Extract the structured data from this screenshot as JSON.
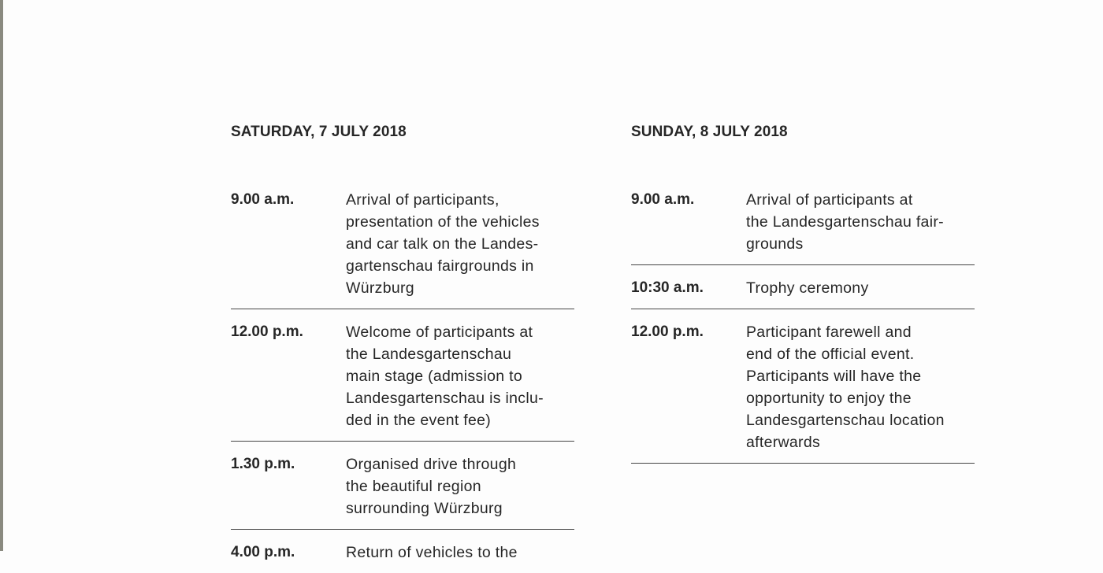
{
  "saturday": {
    "heading": "SATURDAY, 7 JULY 2018",
    "rows": [
      {
        "time": "9.00 a.m.",
        "lines": [
          "Arrival of participants,",
          "presentation of the vehicles",
          "and car talk on the Landes-",
          "gartenschau fairgrounds in",
          "Würzburg"
        ]
      },
      {
        "time": "12.00 p.m.",
        "lines": [
          "Welcome of participants at",
          "the Landesgartenschau",
          "main stage (admission to",
          "Landesgartenschau is inclu-",
          "ded in the event fee)"
        ]
      },
      {
        "time": "1.30 p.m.",
        "lines": [
          "Organised drive through",
          "the beautiful region",
          "surrounding Würzburg"
        ]
      },
      {
        "time": "4.00 p.m.",
        "lines": [
          "Return of vehicles to the"
        ]
      }
    ]
  },
  "sunday": {
    "heading": "SUNDAY, 8 JULY 2018",
    "rows": [
      {
        "time": "9.00 a.m.",
        "lines": [
          "Arrival of participants at",
          "the Landesgartenschau fair-",
          "grounds"
        ]
      },
      {
        "time": "10:30 a.m.",
        "lines": [
          "Trophy ceremony"
        ]
      },
      {
        "time": "12.00 p.m.",
        "lines": [
          "Participant farewell and",
          "end of the official event.",
          "Participants will have the",
          "opportunity to enjoy the",
          "Landesgartenschau location",
          "afterwards"
        ]
      }
    ]
  }
}
